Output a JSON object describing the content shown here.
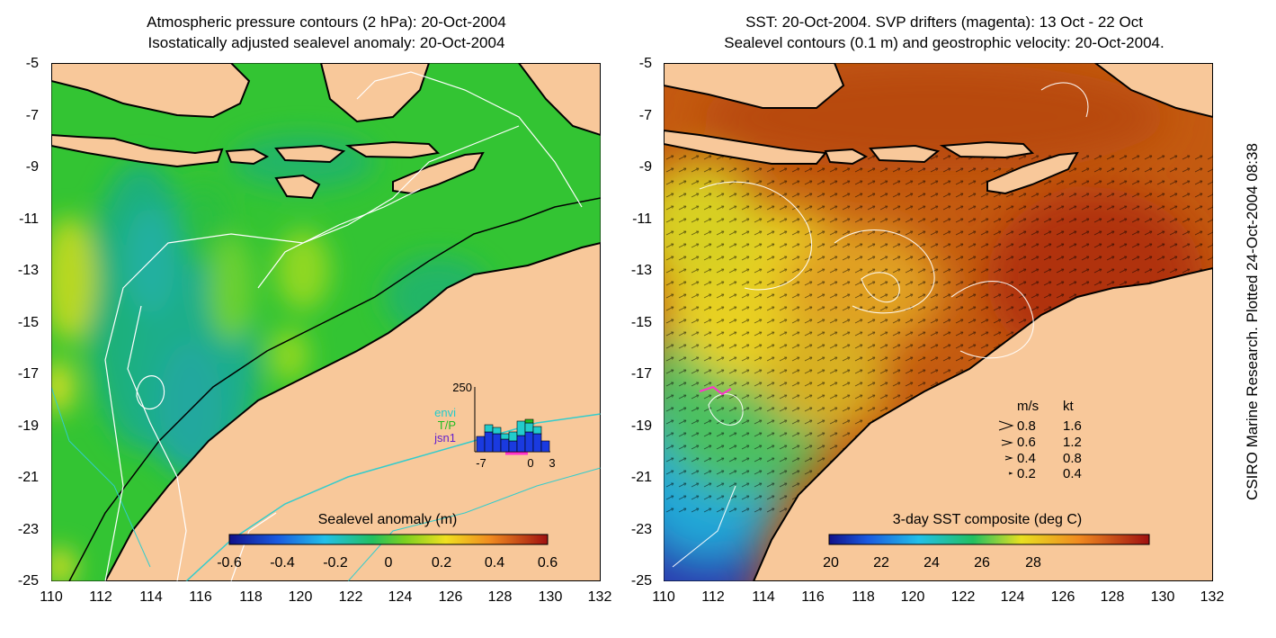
{
  "left_panel": {
    "title_line1": "Atmospheric pressure contours (2 hPa): 20-Oct-2004",
    "title_line2": "Isostatically adjusted sealevel anomaly: 20-Oct-2004",
    "colorbar_label": "Sealevel anomaly (m)",
    "colorbar_ticks": [
      "-0.6",
      "-0.4",
      "-0.2",
      "0",
      "0.2",
      "0.4",
      "0.6"
    ],
    "inset": {
      "ymax": "250",
      "xticks": [
        "-7",
        "0",
        "3"
      ],
      "legend": [
        {
          "label": "envi",
          "color": "#22cccc"
        },
        {
          "label": "T/P",
          "color": "#22bb22"
        },
        {
          "label": "jsn1",
          "color": "#6622cc"
        }
      ]
    }
  },
  "right_panel": {
    "title_line1": "SST: 20-Oct-2004. SVP drifters (magenta): 13 Oct - 22 Oct",
    "title_line2": "Sealevel contours (0.1 m) and geostrophic velocity: 20-Oct-2004.",
    "colorbar_label": "3-day SST composite (deg C)",
    "colorbar_ticks": [
      "20",
      "22",
      "24",
      "26",
      "28"
    ],
    "velocity_legend": {
      "header_ms": "m/s",
      "header_kt": "kt",
      "rows": [
        {
          "ms": "0.8",
          "kt": "1.6"
        },
        {
          "ms": "0.6",
          "kt": "1.2"
        },
        {
          "ms": "0.4",
          "kt": "0.8"
        },
        {
          "ms": "0.2",
          "kt": "0.4"
        }
      ]
    }
  },
  "axes": {
    "y_ticks": [
      "-5",
      "-7",
      "-9",
      "-11",
      "-13",
      "-15",
      "-17",
      "-19",
      "-21",
      "-23",
      "-25"
    ],
    "x_ticks": [
      "110",
      "112",
      "114",
      "116",
      "118",
      "120",
      "122",
      "124",
      "126",
      "128",
      "130",
      "132"
    ]
  },
  "side_label": "CSIRO Marine Research. Plotted 24-Oct-2004 08:38",
  "colors": {
    "land": "#f8c89a",
    "sla_bg": "#33c433",
    "sst_bg": "#c45a10"
  }
}
